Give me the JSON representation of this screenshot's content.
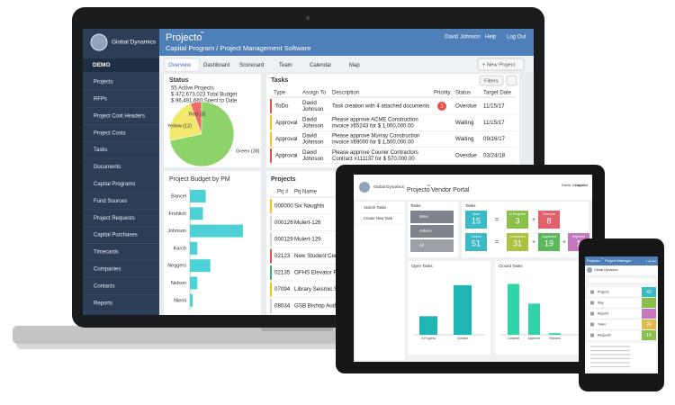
{
  "laptop": {
    "brand": "Global Dynamics",
    "sidebar": {
      "section": "DEMO",
      "items": [
        "Projects",
        "RFPs",
        "Project Cost Headers",
        "Project Costs",
        "Tasks",
        "Documents",
        "Capital Programs",
        "Fund Sources",
        "Project Requests",
        "Capital Purchases",
        "Timecards",
        "Companies",
        "Contacts",
        "Reports"
      ]
    },
    "header": {
      "app": "Projecto",
      "tm": "™",
      "subtitle": "Capital Program / Project Management Software",
      "user": "David Johnson",
      "help": "Help",
      "logout": "Log Out"
    },
    "tabs": [
      "Overview",
      "Dashboard",
      "Scorecard",
      "Team",
      "Calendar",
      "Map"
    ],
    "new_project": "+ New Project",
    "status": {
      "title": "Status",
      "lines": [
        "55  Active Projects",
        "$ 472,673,023  Total Budget",
        "$ 96,491,660  Spent to Date"
      ],
      "chart": {
        "type": "pie",
        "labels": [
          "Red (3)",
          "Yellow (12)",
          "Green (38)"
        ],
        "values": [
          3,
          12,
          38
        ],
        "colors": [
          "#f06a6a",
          "#f2e86d",
          "#8fd36b"
        ]
      }
    },
    "tasks": {
      "title": "Tasks",
      "filters": "Filters",
      "columns": [
        "Type",
        "Assign To",
        "Description",
        "Priority",
        "Status",
        "Target Date"
      ],
      "rows": [
        {
          "type": "ToDo",
          "assignee": [
            "David",
            "Johnson"
          ],
          "description": [
            "Task creation with 4 attached documents"
          ],
          "priority": "1",
          "status": "Overdue",
          "date": "11/15/17"
        },
        {
          "type": "Approval",
          "assignee": [
            "David",
            "Johnson"
          ],
          "description": [
            "Please approve ACME Construction",
            "invoice #65243 for $ 1,000,000.00"
          ],
          "status": "Waiting",
          "date": "11/15/17"
        },
        {
          "type": "Approval",
          "assignee": [
            "David",
            "Johnson"
          ],
          "description": [
            "Please approve Murray Construction",
            "invoice #69000 for $ 1,500,000.00"
          ],
          "status": "Waiting",
          "date": "09/16/17"
        },
        {
          "type": "Approval",
          "assignee": [
            "David",
            "Johnson"
          ],
          "description": [
            "Please approve Courier Contractors",
            "Contract #111137 for $ 570,000.00"
          ],
          "status": "Overdue",
          "date": "03/24/18"
        }
      ]
    },
    "budget": {
      "title": "Project Budget by PM",
      "chart": {
        "type": "bar",
        "categories": [
          "Bancel",
          "Frohlich",
          "Johnson",
          "Karch",
          "Neggers",
          "Nelson",
          "Niemi"
        ],
        "values": [
          17,
          14,
          57,
          8,
          22,
          8,
          3
        ],
        "xlim": [
          0,
          60
        ],
        "color": "#4dd0d6"
      }
    },
    "projects": {
      "title": "Projects",
      "columns": [
        "Prj #",
        "Prj Name"
      ],
      "rows": [
        [
          "000000",
          "Six Naughts"
        ],
        [
          "000126",
          "Mulert-126"
        ],
        [
          "000129",
          "Mulert-129"
        ],
        [
          "02123",
          "New Student Cen"
        ],
        [
          "02135",
          "OFHS Elevator Pr"
        ],
        [
          "07094",
          "Library Seismic S"
        ],
        [
          "08034",
          "GSB Bishop Audi"
        ]
      ]
    }
  },
  "tablet": {
    "brand": "Global Dynamics",
    "app": "Projecto",
    "tm": "™",
    "portal": "Vendor Portal",
    "user": "David Johnson",
    "logout": "Log Out",
    "menu": [
      "Search Tasks",
      "Create New Task"
    ],
    "filter_panel": {
      "title": "Tasks",
      "filters": [
        "Mine",
        "Others",
        "All"
      ]
    },
    "tiles_panel": {
      "title": "Tasks",
      "open": {
        "label": "Open",
        "value": 15
      },
      "in_progress": {
        "label": "In Progress",
        "value": 3
      },
      "overdue": {
        "label": "Overdue",
        "value": 8
      },
      "closed": {
        "label": "Closed",
        "value": 51
      },
      "completed": {
        "label": "Completed",
        "value": 31
      },
      "approved": {
        "label": "Approved",
        "value": 19
      },
      "rejected": {
        "label": "Rejected",
        "value": 1
      }
    },
    "open_chart": {
      "type": "bar",
      "title": "Open Tasks",
      "categories": [
        "In Progress",
        "Overdue"
      ],
      "values": [
        3,
        8
      ],
      "ylim": [
        0,
        9
      ],
      "color": "#1fb5b5"
    },
    "closed_chart": {
      "type": "bar",
      "title": "Closed Tasks",
      "categories": [
        "Complete",
        "Approved",
        "Rejected"
      ],
      "values": [
        31,
        19,
        1
      ],
      "ylim": [
        0,
        34
      ],
      "color": "#2fd4a8"
    }
  },
  "phone": {
    "app": "Projecto",
    "tm": "™",
    "title": "Project Manager",
    "logout": "Log Out",
    "brand": "Global Dynamics",
    "items": [
      {
        "label": "Projects",
        "count": 43
      },
      {
        "label": "Map"
      },
      {
        "label": "Reports"
      },
      {
        "label": "Tasks",
        "count": 24
      },
      {
        "label": "Requests",
        "count": 14
      }
    ]
  }
}
